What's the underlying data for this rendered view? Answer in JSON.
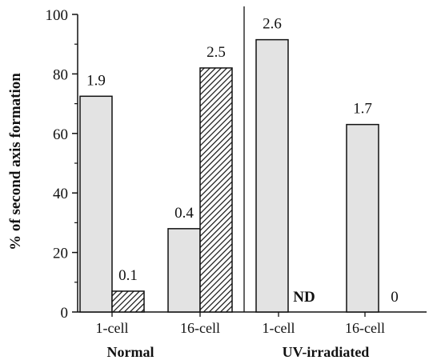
{
  "chart_data": {
    "type": "bar",
    "ylabel": "% of second axis formation",
    "ylim": [
      0,
      100
    ],
    "yticks": [
      "0",
      "20",
      "40",
      "60",
      "80",
      "100"
    ],
    "groups": [
      {
        "name": "Normal",
        "categories": [
          {
            "name": "1-cell",
            "bars": [
              {
                "style": "plain",
                "value": 72.5,
                "label": "1.9"
              },
              {
                "style": "hatched",
                "value": 7,
                "label": "0.1"
              }
            ]
          },
          {
            "name": "16-cell",
            "bars": [
              {
                "style": "plain",
                "value": 28,
                "label": "0.4"
              },
              {
                "style": "hatched",
                "value": 82,
                "label": "2.5"
              }
            ]
          }
        ]
      },
      {
        "name": "UV-irradiated",
        "categories": [
          {
            "name": "1-cell",
            "bars": [
              {
                "style": "plain",
                "value": 91.5,
                "label": "2.6"
              },
              {
                "style": "none",
                "value": null,
                "label": "ND"
              }
            ]
          },
          {
            "name": "16-cell",
            "bars": [
              {
                "style": "plain",
                "value": 63,
                "label": "1.7"
              },
              {
                "style": "hatched",
                "value": 0,
                "label": "0"
              }
            ]
          }
        ]
      }
    ],
    "colors": {
      "plain_fill": "#e3e3e3",
      "hatch_fill": "#ffffff",
      "hatch_line": "#111111",
      "stroke": "#111111"
    }
  }
}
